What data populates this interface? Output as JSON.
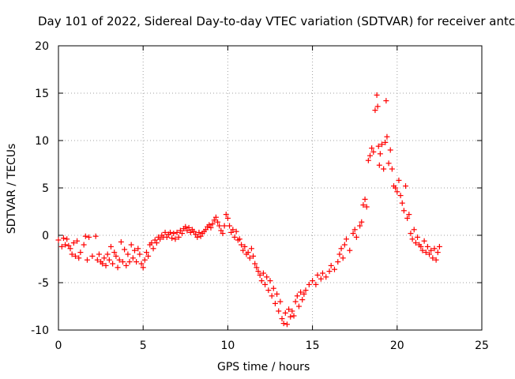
{
  "chart_data": {
    "type": "scatter",
    "title": "Day 101 of 2022, Sidereal Day-to-day VTEC variation (SDTVAR) for receiver antc",
    "xlabel": "GPS time / hours",
    "ylabel": "SDTVAR / TECUs",
    "xlim": [
      0,
      25
    ],
    "ylim": [
      -10,
      20
    ],
    "xticks": [
      "0",
      "5",
      "10",
      "15",
      "20",
      "25"
    ],
    "yticks": [
      "-10",
      "-5",
      "0",
      "5",
      "10",
      "15",
      "20"
    ],
    "grid": true,
    "marker": "+",
    "color": "#ff0000",
    "series": [
      {
        "name": "SDTVAR",
        "points": [
          [
            0.0,
            -0.5
          ],
          [
            0.2,
            -1.2
          ],
          [
            0.3,
            -0.3
          ],
          [
            0.4,
            -1.0
          ],
          [
            0.5,
            -0.4
          ],
          [
            0.6,
            -1.1
          ],
          [
            0.7,
            -1.4
          ],
          [
            0.8,
            -2.0
          ],
          [
            0.9,
            -0.8
          ],
          [
            1.0,
            -2.2
          ],
          [
            1.1,
            -0.6
          ],
          [
            1.2,
            -2.4
          ],
          [
            1.3,
            -1.8
          ],
          [
            1.5,
            -1.0
          ],
          [
            1.6,
            -0.1
          ],
          [
            1.7,
            -2.6
          ],
          [
            1.8,
            -0.2
          ],
          [
            2.0,
            -2.2
          ],
          [
            2.2,
            -0.1
          ],
          [
            2.3,
            -2.6
          ],
          [
            2.4,
            -2.0
          ],
          [
            2.5,
            -2.8
          ],
          [
            2.6,
            -3.0
          ],
          [
            2.7,
            -2.4
          ],
          [
            2.8,
            -3.2
          ],
          [
            2.9,
            -2.0
          ],
          [
            3.0,
            -2.6
          ],
          [
            3.1,
            -1.2
          ],
          [
            3.2,
            -3.0
          ],
          [
            3.3,
            -1.8
          ],
          [
            3.4,
            -2.2
          ],
          [
            3.5,
            -3.4
          ],
          [
            3.6,
            -2.6
          ],
          [
            3.7,
            -0.7
          ],
          [
            3.8,
            -2.8
          ],
          [
            3.9,
            -1.5
          ],
          [
            4.0,
            -3.2
          ],
          [
            4.1,
            -2.0
          ],
          [
            4.2,
            -2.8
          ],
          [
            4.3,
            -1.0
          ],
          [
            4.4,
            -2.4
          ],
          [
            4.5,
            -1.6
          ],
          [
            4.6,
            -2.8
          ],
          [
            4.7,
            -1.4
          ],
          [
            4.8,
            -2.0
          ],
          [
            4.9,
            -3.0
          ],
          [
            5.0,
            -3.4
          ],
          [
            5.1,
            -2.6
          ],
          [
            5.2,
            -1.8
          ],
          [
            5.3,
            -2.2
          ],
          [
            5.4,
            -1.0
          ],
          [
            5.5,
            -0.8
          ],
          [
            5.6,
            -1.4
          ],
          [
            5.7,
            -0.5
          ],
          [
            5.8,
            -0.8
          ],
          [
            5.9,
            -0.2
          ],
          [
            6.0,
            -0.4
          ],
          [
            6.1,
            0.0
          ],
          [
            6.2,
            -0.2
          ],
          [
            6.3,
            0.3
          ],
          [
            6.4,
            -0.2
          ],
          [
            6.5,
            0.1
          ],
          [
            6.6,
            0.3
          ],
          [
            6.7,
            -0.3
          ],
          [
            6.8,
            0.2
          ],
          [
            6.9,
            -0.4
          ],
          [
            7.0,
            0.3
          ],
          [
            7.1,
            -0.2
          ],
          [
            7.2,
            0.5
          ],
          [
            7.3,
            0.2
          ],
          [
            7.4,
            0.7
          ],
          [
            7.5,
            0.9
          ],
          [
            7.6,
            0.5
          ],
          [
            7.7,
            0.8
          ],
          [
            7.8,
            0.3
          ],
          [
            7.9,
            0.6
          ],
          [
            8.0,
            0.4
          ],
          [
            8.1,
            0.1
          ],
          [
            8.2,
            -0.2
          ],
          [
            8.3,
            0.3
          ],
          [
            8.4,
            -0.1
          ],
          [
            8.5,
            0.2
          ],
          [
            8.6,
            0.4
          ],
          [
            8.7,
            0.6
          ],
          [
            8.8,
            0.9
          ],
          [
            8.9,
            1.1
          ],
          [
            9.0,
            0.8
          ],
          [
            9.1,
            1.2
          ],
          [
            9.2,
            1.6
          ],
          [
            9.3,
            1.9
          ],
          [
            9.4,
            1.4
          ],
          [
            9.5,
            1.0
          ],
          [
            9.6,
            0.5
          ],
          [
            9.7,
            0.2
          ],
          [
            9.8,
            1.0
          ],
          [
            9.9,
            2.2
          ],
          [
            10.0,
            1.8
          ],
          [
            10.1,
            1.0
          ],
          [
            10.2,
            0.3
          ],
          [
            10.3,
            0.6
          ],
          [
            10.4,
            -0.2
          ],
          [
            10.5,
            0.4
          ],
          [
            10.6,
            -0.5
          ],
          [
            10.7,
            -0.4
          ],
          [
            10.8,
            -1.0
          ],
          [
            10.9,
            -1.6
          ],
          [
            11.0,
            -1.2
          ],
          [
            11.1,
            -2.0
          ],
          [
            11.2,
            -1.8
          ],
          [
            11.3,
            -2.4
          ],
          [
            11.4,
            -1.4
          ],
          [
            11.5,
            -2.2
          ],
          [
            11.6,
            -3.0
          ],
          [
            11.7,
            -3.4
          ],
          [
            11.8,
            -3.8
          ],
          [
            11.9,
            -4.2
          ],
          [
            12.0,
            -4.8
          ],
          [
            12.1,
            -4.0
          ],
          [
            12.2,
            -5.2
          ],
          [
            12.3,
            -4.4
          ],
          [
            12.4,
            -5.8
          ],
          [
            12.5,
            -4.8
          ],
          [
            12.6,
            -6.4
          ],
          [
            12.7,
            -5.6
          ],
          [
            12.8,
            -7.2
          ],
          [
            12.9,
            -6.2
          ],
          [
            13.0,
            -8.0
          ],
          [
            13.1,
            -7.0
          ],
          [
            13.2,
            -8.8
          ],
          [
            13.3,
            -9.3
          ],
          [
            13.4,
            -8.2
          ],
          [
            13.5,
            -9.4
          ],
          [
            13.6,
            -7.8
          ],
          [
            13.7,
            -8.6
          ],
          [
            13.8,
            -8.0
          ],
          [
            13.9,
            -8.5
          ],
          [
            14.0,
            -7.0
          ],
          [
            14.1,
            -6.4
          ],
          [
            14.2,
            -7.5
          ],
          [
            14.3,
            -6.0
          ],
          [
            14.4,
            -6.8
          ],
          [
            14.5,
            -6.2
          ],
          [
            14.6,
            -5.8
          ],
          [
            14.8,
            -5.2
          ],
          [
            15.0,
            -4.8
          ],
          [
            15.2,
            -5.2
          ],
          [
            15.3,
            -4.2
          ],
          [
            15.5,
            -4.6
          ],
          [
            15.6,
            -4.0
          ],
          [
            15.8,
            -4.4
          ],
          [
            16.0,
            -3.8
          ],
          [
            16.1,
            -3.2
          ],
          [
            16.3,
            -3.6
          ],
          [
            16.5,
            -2.8
          ],
          [
            16.6,
            -2.0
          ],
          [
            16.7,
            -1.4
          ],
          [
            16.8,
            -2.4
          ],
          [
            16.9,
            -1.0
          ],
          [
            17.0,
            -0.4
          ],
          [
            17.2,
            -1.6
          ],
          [
            17.4,
            0.2
          ],
          [
            17.5,
            0.6
          ],
          [
            17.6,
            -0.2
          ],
          [
            17.8,
            1.0
          ],
          [
            17.9,
            1.4
          ],
          [
            18.0,
            3.2
          ],
          [
            18.1,
            3.8
          ],
          [
            18.2,
            3.0
          ],
          [
            18.3,
            7.9
          ],
          [
            18.4,
            8.4
          ],
          [
            18.5,
            9.2
          ],
          [
            18.6,
            8.8
          ],
          [
            18.7,
            13.2
          ],
          [
            18.8,
            14.8
          ],
          [
            18.85,
            13.6
          ],
          [
            18.9,
            9.4
          ],
          [
            18.95,
            7.4
          ],
          [
            19.0,
            8.6
          ],
          [
            19.1,
            9.6
          ],
          [
            19.2,
            7.0
          ],
          [
            19.3,
            9.8
          ],
          [
            19.35,
            14.2
          ],
          [
            19.4,
            10.4
          ],
          [
            19.5,
            7.6
          ],
          [
            19.6,
            9.0
          ],
          [
            19.7,
            7.0
          ],
          [
            19.8,
            5.2
          ],
          [
            19.9,
            5.0
          ],
          [
            20.0,
            4.6
          ],
          [
            20.1,
            5.8
          ],
          [
            20.2,
            4.2
          ],
          [
            20.3,
            3.4
          ],
          [
            20.4,
            2.6
          ],
          [
            20.5,
            5.2
          ],
          [
            20.6,
            1.8
          ],
          [
            20.7,
            2.2
          ],
          [
            20.8,
            0.2
          ],
          [
            20.9,
            -0.4
          ],
          [
            21.0,
            0.6
          ],
          [
            21.1,
            -0.8
          ],
          [
            21.2,
            -0.2
          ],
          [
            21.3,
            -1.0
          ],
          [
            21.4,
            -1.2
          ],
          [
            21.5,
            -1.6
          ],
          [
            21.6,
            -0.6
          ],
          [
            21.7,
            -1.8
          ],
          [
            21.8,
            -1.2
          ],
          [
            21.9,
            -2.0
          ],
          [
            22.0,
            -1.6
          ],
          [
            22.1,
            -2.4
          ],
          [
            22.2,
            -1.4
          ],
          [
            22.3,
            -2.6
          ],
          [
            22.4,
            -1.8
          ],
          [
            22.5,
            -1.2
          ]
        ]
      }
    ]
  }
}
